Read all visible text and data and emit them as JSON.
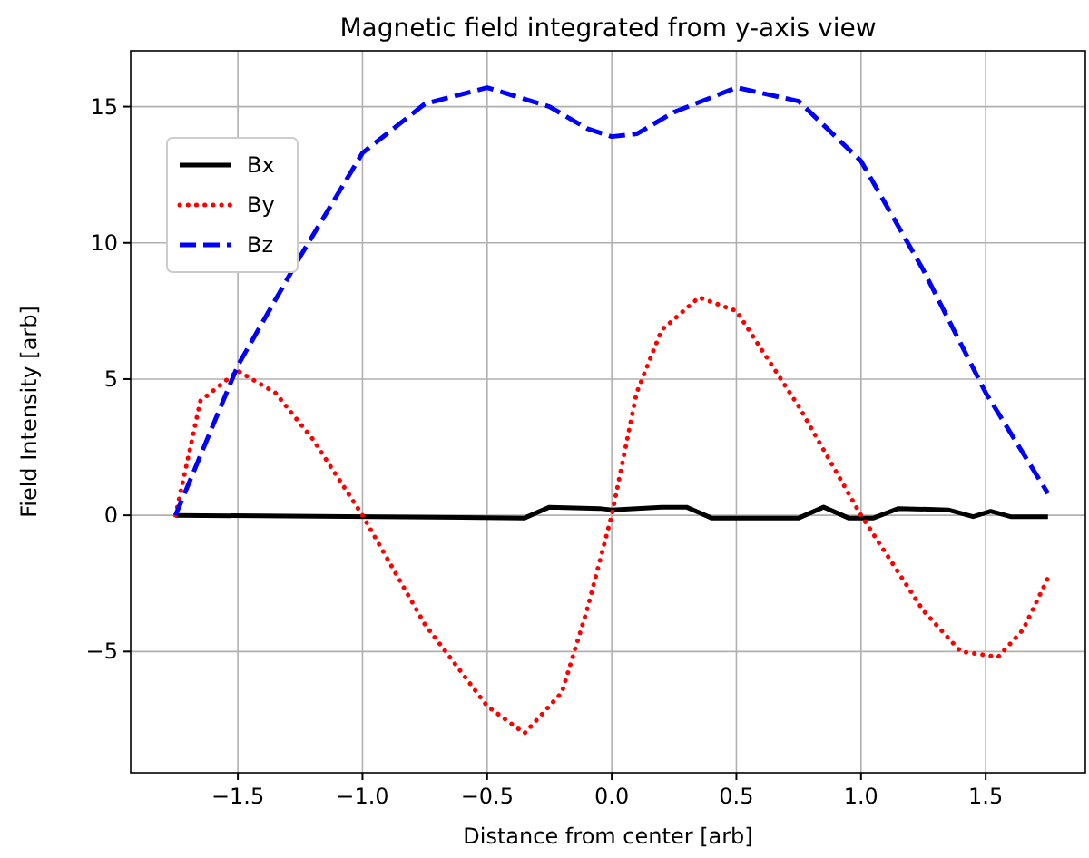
{
  "chart_data": {
    "type": "line",
    "title": "Magnetic field integrated from y-axis view",
    "xlabel": "Distance from center [arb]",
    "ylabel": "Field Intensity [arb]",
    "xlim": [
      -1.93,
      1.9
    ],
    "ylim": [
      -9.45,
      17.05
    ],
    "xticks": [
      {
        "value": -1.5,
        "label": "−1.5"
      },
      {
        "value": -1,
        "label": "−1.0"
      },
      {
        "value": -0.5,
        "label": "−0.5"
      },
      {
        "value": 0,
        "label": "0.0"
      },
      {
        "value": 0.5,
        "label": "0.5"
      },
      {
        "value": 1,
        "label": "1.0"
      },
      {
        "value": 1.5,
        "label": "1.5"
      }
    ],
    "yticks": [
      {
        "value": -5,
        "label": "−5"
      },
      0,
      5,
      10,
      15
    ],
    "grid": true,
    "legend": "top left",
    "series": [
      {
        "name": "Bx",
        "color": "#000000",
        "line_style": "solid",
        "x": [
          -1.75,
          -0.35,
          -0.25,
          -0.05,
          0,
          0.2,
          0.3,
          0.4,
          0.75,
          0.85,
          0.95,
          1.05,
          1.15,
          1.35,
          1.45,
          1.52,
          1.6,
          1.75
        ],
        "values": [
          0,
          -0.1,
          0.3,
          0.25,
          0.2,
          0.3,
          0.3,
          -0.1,
          -0.1,
          0.3,
          -0.1,
          -0.1,
          0.25,
          0.2,
          -0.05,
          0.15,
          -0.05,
          -0.05
        ]
      },
      {
        "name": "By",
        "color": "#ff0000",
        "line_style": "dotted",
        "x": [
          -1.75,
          -1.65,
          -1.5,
          -1.35,
          -1.2,
          -1,
          -0.75,
          -0.5,
          -0.35,
          -0.2,
          -0.1,
          0,
          0.1,
          0.2,
          0.35,
          0.5,
          0.75,
          1,
          1.25,
          1.4,
          1.55,
          1.65,
          1.75
        ],
        "values": [
          0,
          4.2,
          5.3,
          4.5,
          2.8,
          0,
          -4,
          -7,
          -8,
          -6.5,
          -3.5,
          0,
          4.5,
          6.8,
          8,
          7.5,
          4,
          0,
          -3.5,
          -5,
          -5.2,
          -4.2,
          -2.3
        ]
      },
      {
        "name": "Bz",
        "color": "#0000ff",
        "line_style": "dashed",
        "x": [
          -1.75,
          -1.5,
          -1.25,
          -1,
          -0.75,
          -0.5,
          -0.25,
          -0.1,
          0,
          0.1,
          0.25,
          0.5,
          0.75,
          1,
          1.25,
          1.5,
          1.75
        ],
        "values": [
          0,
          5.5,
          9.5,
          13.3,
          15.1,
          15.7,
          15,
          14.2,
          13.9,
          14,
          14.8,
          15.7,
          15.2,
          13,
          9,
          4.5,
          0.8
        ]
      }
    ]
  }
}
